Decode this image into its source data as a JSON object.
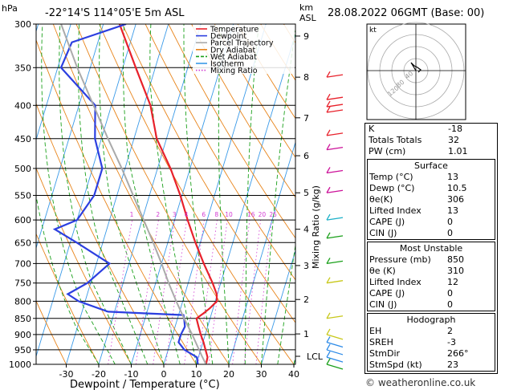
{
  "header": {
    "location": "-22°14'S  114°05'E  5m  ASL",
    "datetime": "28.08.2022  06GMT  (Base: 00)",
    "hpa_unit": "hPa",
    "km_unit": "km",
    "asl_unit": "ASL"
  },
  "chart_data": {
    "type": "skew-t",
    "xlabel": "Dewpoint / Temperature (°C)",
    "mixing_ratio_label": "Mixing Ratio (g/kg)",
    "pressure_levels": [
      300,
      350,
      400,
      450,
      500,
      550,
      600,
      650,
      700,
      750,
      800,
      850,
      900,
      950,
      1000
    ],
    "x_ticks": [
      -30,
      -20,
      -10,
      0,
      10,
      20,
      30,
      40
    ],
    "xlim": [
      -40,
      40
    ],
    "plim": [
      1000,
      300
    ],
    "km_ticks": [
      {
        "km": "1",
        "p": 898
      },
      {
        "km": "2",
        "p": 795
      },
      {
        "km": "3",
        "p": 705
      },
      {
        "km": "4",
        "p": 620
      },
      {
        "km": "5",
        "p": 545
      },
      {
        "km": "6",
        "p": 478
      },
      {
        "km": "7",
        "p": 418
      },
      {
        "km": "8",
        "p": 362
      },
      {
        "km": "9",
        "p": 313
      }
    ],
    "lcl": {
      "label": "LCL",
      "p": 972
    },
    "mixing_ratio_values": [
      "1",
      "2",
      "3",
      "4",
      "6",
      "8",
      "10",
      "16",
      "20",
      "25"
    ],
    "legend": [
      "Temperature",
      "Dewpoint",
      "Parcel Trajectory",
      "Dry Adiabat",
      "Wet Adiabat",
      "Isotherm",
      "Mixing Ratio"
    ],
    "series": [
      {
        "name": "Temperature",
        "color": "#e8212b",
        "points": [
          [
            1000,
            13
          ],
          [
            975,
            12.8
          ],
          [
            950,
            11.5
          ],
          [
            925,
            10.2
          ],
          [
            900,
            8.6
          ],
          [
            875,
            7.2
          ],
          [
            850,
            5.8
          ],
          [
            835,
            7.5
          ],
          [
            820,
            9
          ],
          [
            800,
            10.5
          ],
          [
            780,
            9.8
          ],
          [
            750,
            7.5
          ],
          [
            700,
            3
          ],
          [
            650,
            -1.5
          ],
          [
            600,
            -6
          ],
          [
            550,
            -10.5
          ],
          [
            500,
            -16
          ],
          [
            450,
            -23
          ],
          [
            400,
            -28
          ],
          [
            350,
            -36
          ],
          [
            300,
            -45
          ]
        ]
      },
      {
        "name": "Dewpoint",
        "color": "#2c3fe0",
        "points": [
          [
            1000,
            10.5
          ],
          [
            975,
            9.5
          ],
          [
            950,
            5
          ],
          [
            925,
            2.5
          ],
          [
            900,
            2.5
          ],
          [
            875,
            3
          ],
          [
            850,
            2
          ],
          [
            840,
            1.5
          ],
          [
            830,
            -22
          ],
          [
            800,
            -32
          ],
          [
            780,
            -36
          ],
          [
            750,
            -31
          ],
          [
            700,
            -26
          ],
          [
            650,
            -38
          ],
          [
            620,
            -46
          ],
          [
            600,
            -40
          ],
          [
            550,
            -37
          ],
          [
            500,
            -37
          ],
          [
            450,
            -42
          ],
          [
            400,
            -45
          ],
          [
            350,
            -59
          ],
          [
            320,
            -58
          ],
          [
            300,
            -43
          ]
        ]
      },
      {
        "name": "Parcel Trajectory",
        "color": "#aaaaaa",
        "points": [
          [
            1000,
            13
          ],
          [
            972,
            11
          ],
          [
            900,
            6
          ],
          [
            850,
            2
          ],
          [
            800,
            -2
          ],
          [
            750,
            -6
          ],
          [
            700,
            -10
          ],
          [
            650,
            -14.5
          ],
          [
            600,
            -19.5
          ],
          [
            550,
            -25
          ],
          [
            500,
            -31
          ],
          [
            450,
            -38
          ],
          [
            400,
            -45.5
          ],
          [
            350,
            -54
          ],
          [
            300,
            -63
          ]
        ]
      }
    ]
  },
  "hodograph": {
    "unit": "kt",
    "ring_labels": [
      "120",
      "80",
      "40"
    ]
  },
  "stats": {
    "basic": [
      {
        "label": "K",
        "value": "-18"
      },
      {
        "label": "Totals Totals",
        "value": "32"
      },
      {
        "label": "PW (cm)",
        "value": "1.01"
      }
    ],
    "surface": {
      "title": "Surface",
      "rows": [
        {
          "label": "Temp (°C)",
          "value": "13"
        },
        {
          "label": "Dewp (°C)",
          "value": "10.5"
        },
        {
          "label": "θe(K)",
          "value": "306"
        },
        {
          "label": "Lifted Index",
          "value": "13"
        },
        {
          "label": "CAPE (J)",
          "value": "0"
        },
        {
          "label": "CIN (J)",
          "value": "0"
        }
      ]
    },
    "most_unstable": {
      "title": "Most Unstable",
      "rows": [
        {
          "label": "Pressure (mb)",
          "value": "850"
        },
        {
          "label": "θe (K)",
          "value": "310"
        },
        {
          "label": "Lifted Index",
          "value": "12"
        },
        {
          "label": "CAPE (J)",
          "value": "0"
        },
        {
          "label": "CIN (J)",
          "value": "0"
        }
      ]
    },
    "hodograph": {
      "title": "Hodograph",
      "rows": [
        {
          "label": "EH",
          "value": "2"
        },
        {
          "label": "SREH",
          "value": "-3"
        },
        {
          "label": "StmDir",
          "value": "266°"
        },
        {
          "label": "StmSpd (kt)",
          "value": "23"
        }
      ]
    }
  },
  "credit": "© weatheronline.co.uk"
}
